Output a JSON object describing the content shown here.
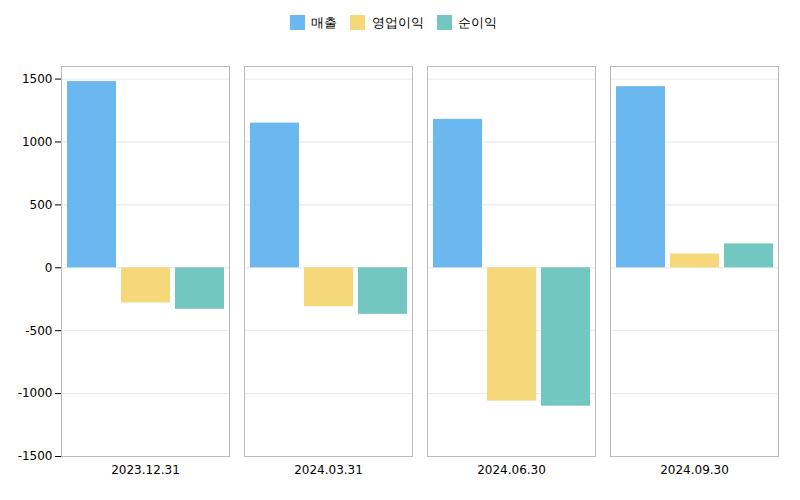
{
  "chart_data": {
    "type": "bar",
    "categories": [
      "2023.12.31",
      "2024.03.31",
      "2024.06.30",
      "2024.09.30"
    ],
    "series": [
      {
        "name": "매출",
        "color": "#6BB8F0",
        "values": [
          1480,
          1150,
          1180,
          1440
        ]
      },
      {
        "name": "영업이익",
        "color": "#F5D87A",
        "values": [
          -280,
          -310,
          -1060,
          110
        ]
      },
      {
        "name": "순이익",
        "color": "#72C8C0",
        "values": [
          -330,
          -370,
          -1100,
          190
        ]
      }
    ],
    "ylim": [
      -1500,
      1600
    ],
    "yticks": [
      -1500,
      -1000,
      -500,
      0,
      500,
      1000,
      1500
    ],
    "grid": true,
    "legend": "top"
  }
}
